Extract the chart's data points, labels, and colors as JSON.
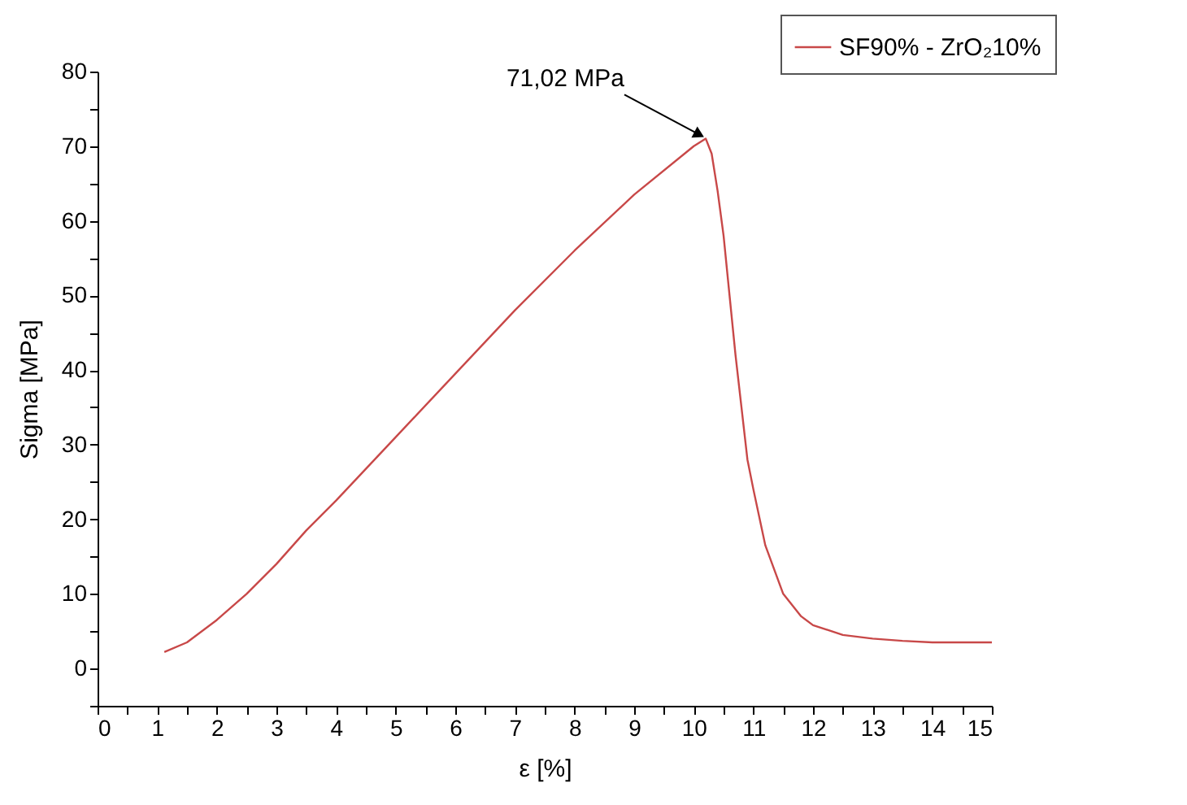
{
  "chart_data": {
    "type": "line",
    "xlabel": "ε [%]",
    "ylabel": "Sigma [MPa]",
    "x": [
      1.12,
      1.5,
      2,
      2.5,
      3,
      3.5,
      4,
      5,
      6,
      7,
      8,
      9,
      10,
      10.2,
      10.3,
      10.4,
      10.5,
      10.6,
      10.7,
      10.8,
      10.9,
      11,
      11.2,
      11.5,
      11.8,
      12,
      12.5,
      13,
      13.5,
      14,
      15
    ],
    "series": [
      {
        "name": "SF90% - ZrO₂10%",
        "color": "#c84848",
        "values": [
          2.2,
          3.5,
          6.5,
          10,
          14,
          18.5,
          22.5,
          31,
          39.5,
          48,
          56,
          63.5,
          70,
          71.02,
          69,
          64,
          58,
          50,
          42,
          35,
          28,
          24,
          16.5,
          10,
          7,
          5.8,
          4.5,
          4,
          3.7,
          3.5,
          3.5
        ]
      }
    ],
    "xlim": [
      0,
      15
    ],
    "ylim": [
      -5,
      80
    ],
    "xticks": [
      0,
      {
        "value": 0.5,
        "label": null
      },
      1,
      {
        "value": 1.5,
        "label": null
      },
      2,
      {
        "value": 2.5,
        "label": null
      },
      3,
      {
        "value": 3.5,
        "label": null
      },
      4,
      {
        "value": 4.5,
        "label": null
      },
      5,
      {
        "value": 5.5,
        "label": null
      },
      6,
      {
        "value": 6.5,
        "label": null
      },
      7,
      {
        "value": 7.5,
        "label": null
      },
      8,
      {
        "value": 8.5,
        "label": null
      },
      9,
      {
        "value": 9.5,
        "label": null
      },
      10,
      {
        "value": 10.5,
        "label": null
      },
      11,
      {
        "value": 11.5,
        "label": null
      },
      12,
      {
        "value": 12.5,
        "label": null
      },
      13,
      {
        "value": 13.5,
        "label": null
      },
      14,
      {
        "value": 14.5,
        "label": null
      },
      15
    ],
    "yticks": [
      {
        "value": -5,
        "label": null
      },
      0,
      {
        "value": 5,
        "label": null
      },
      10,
      {
        "value": 15,
        "label": null
      },
      20,
      {
        "value": 25,
        "label": null
      },
      30,
      {
        "value": 35,
        "label": null
      },
      40,
      {
        "value": 45,
        "label": null
      },
      50,
      {
        "value": 55,
        "label": null
      },
      60,
      {
        "value": 65,
        "label": null
      },
      70,
      {
        "value": 75,
        "label": null
      },
      80
    ],
    "annotations": [
      {
        "text": "71,02 MPa",
        "x": 10.2,
        "y": 71.02
      }
    ],
    "legend": "top right",
    "grid": false,
    "marker": "none",
    "line_style": "solid"
  }
}
